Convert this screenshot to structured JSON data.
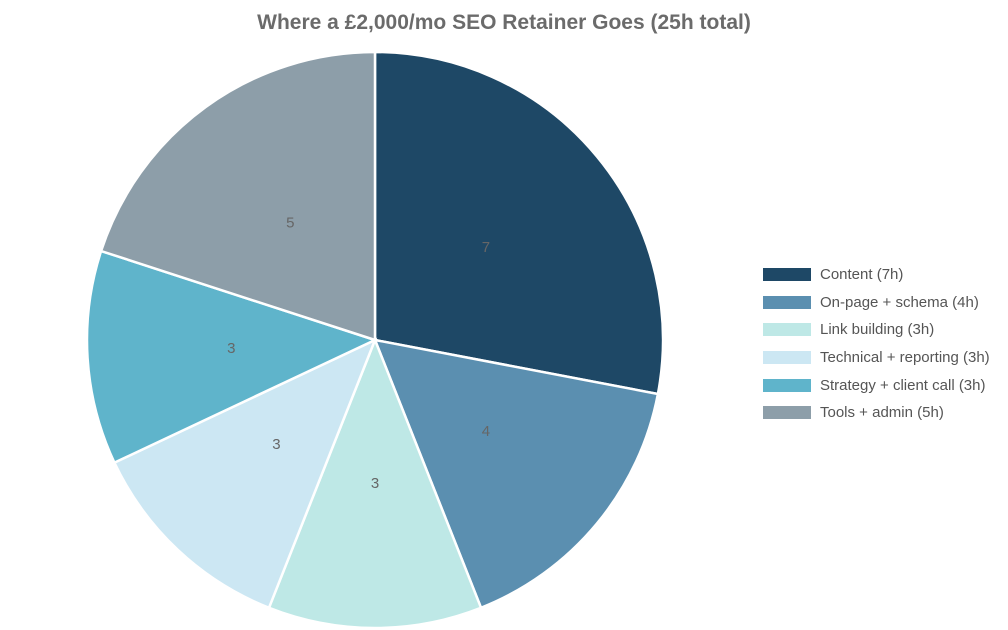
{
  "chart_data": {
    "type": "pie",
    "title": "Where a £2,000/mo SEO Retainer Goes (25h total)",
    "slices": [
      {
        "name": "Content (7h)",
        "value": 7,
        "color": "#1e4866"
      },
      {
        "name": "On-page + schema (4h)",
        "value": 4,
        "color": "#5b8fb0"
      },
      {
        "name": "Link building (3h)",
        "value": 3,
        "color": "#bee8e6"
      },
      {
        "name": "Technical + reporting (3h)",
        "value": 3,
        "color": "#cce7f3"
      },
      {
        "name": "Strategy + client call (3h)",
        "value": 3,
        "color": "#5fb4cb"
      },
      {
        "name": "Tools + admin (5h)",
        "value": 5,
        "color": "#8d9ea9"
      }
    ],
    "legend_position": "right"
  }
}
